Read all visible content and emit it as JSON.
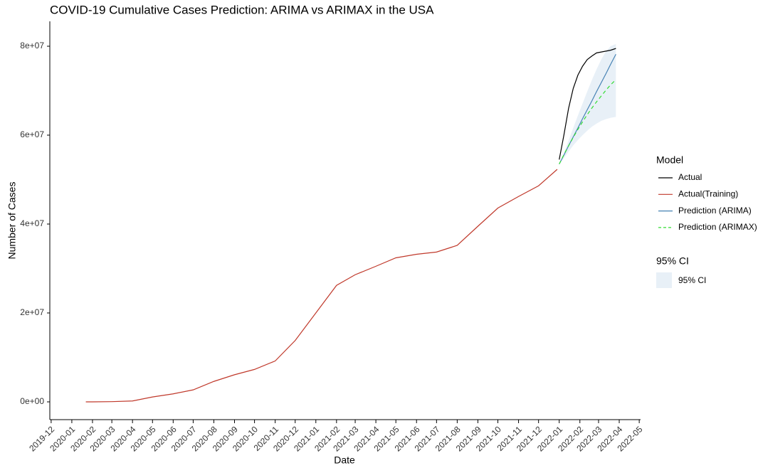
{
  "chart_data": {
    "type": "line",
    "title": "COVID-19 Cumulative Cases Prediction: ARIMA vs ARIMAX in the USA",
    "x_label": "Date",
    "y_label": "Number of Cases",
    "x": [
      "2020-01-22",
      "2020-02-01",
      "2020-03-01",
      "2020-04-01",
      "2020-05-01",
      "2020-06-01",
      "2020-07-01",
      "2020-08-01",
      "2020-09-01",
      "2020-10-01",
      "2020-11-01",
      "2020-12-01",
      "2021-01-01",
      "2021-02-01",
      "2021-03-01",
      "2021-04-01",
      "2021-05-01",
      "2021-06-01",
      "2021-07-01",
      "2021-08-01",
      "2021-09-01",
      "2021-10-01",
      "2021-11-01",
      "2021-12-01",
      "2021-12-29",
      "2022-01-01",
      "2022-01-08",
      "2022-01-15",
      "2022-01-22",
      "2022-01-29",
      "2022-02-05",
      "2022-02-12",
      "2022-02-19",
      "2022-02-26",
      "2022-03-05",
      "2022-03-12",
      "2022-03-19",
      "2022-03-27"
    ],
    "series": [
      {
        "name": "Actual",
        "color": "#000000",
        "dash": false,
        "values": [
          null,
          null,
          null,
          null,
          null,
          null,
          null,
          null,
          null,
          null,
          null,
          null,
          null,
          null,
          null,
          null,
          null,
          null,
          null,
          null,
          null,
          null,
          null,
          null,
          null,
          54500000,
          60000000,
          66000000,
          70500000,
          73500000,
          75500000,
          77000000,
          77800000,
          78500000,
          78700000,
          78900000,
          79100000,
          79500000
        ]
      },
      {
        "name": "Actual(Training)",
        "color": "#c0392b",
        "dash": false,
        "values": [
          0,
          0,
          50000,
          200000,
          1100000,
          1800000,
          2700000,
          4600000,
          6100000,
          7300000,
          9200000,
          13800000,
          20000000,
          26200000,
          28600000,
          30500000,
          32400000,
          33200000,
          33700000,
          35200000,
          39500000,
          43600000,
          46200000,
          48600000,
          52300000,
          null,
          null,
          null,
          null,
          null,
          null,
          null,
          null,
          null,
          null,
          null,
          null,
          null
        ]
      },
      {
        "name": "Prediction (ARIMA)",
        "color": "#4682b4",
        "dash": false,
        "values": [
          null,
          null,
          null,
          null,
          null,
          null,
          null,
          null,
          null,
          null,
          null,
          null,
          null,
          null,
          null,
          null,
          null,
          null,
          null,
          null,
          null,
          null,
          null,
          null,
          null,
          53500000,
          55500000,
          57600000,
          59600000,
          61600000,
          63700000,
          65700000,
          67700000,
          69800000,
          71800000,
          73800000,
          75900000,
          78200000
        ]
      },
      {
        "name": "Prediction (ARIMAX)",
        "color": "#33dd33",
        "dash": true,
        "values": [
          null,
          null,
          null,
          null,
          null,
          null,
          null,
          null,
          null,
          null,
          null,
          null,
          null,
          null,
          null,
          null,
          null,
          null,
          null,
          null,
          null,
          null,
          null,
          null,
          null,
          53500000,
          55600000,
          57600000,
          59500000,
          61300000,
          63000000,
          64600000,
          66100000,
          67500000,
          68800000,
          70100000,
          71300000,
          72500000
        ]
      }
    ],
    "ci": {
      "title": "95% CI",
      "name": "95% CI",
      "color": "#e8f0f7",
      "lower": [
        null,
        null,
        null,
        null,
        null,
        null,
        null,
        null,
        null,
        null,
        null,
        null,
        null,
        null,
        null,
        null,
        null,
        null,
        null,
        null,
        null,
        null,
        null,
        null,
        null,
        53500000,
        54800000,
        56300000,
        57700000,
        58900000,
        60000000,
        61000000,
        61900000,
        62600000,
        63200000,
        63600000,
        63900000,
        64100000
      ],
      "upper": [
        null,
        null,
        null,
        null,
        null,
        null,
        null,
        null,
        null,
        null,
        null,
        null,
        null,
        null,
        null,
        null,
        null,
        null,
        null,
        null,
        null,
        null,
        null,
        null,
        null,
        53500000,
        56000000,
        58800000,
        61600000,
        64400000,
        67100000,
        69800000,
        72400000,
        74800000,
        77000000,
        78800000,
        80000000,
        80500000
      ]
    },
    "legend_title": "Model",
    "xlim": [
      "2019-11-29",
      "2022-05-03"
    ],
    "xticks": [
      "2019-12",
      "2020-01",
      "2020-02",
      "2020-03",
      "2020-04",
      "2020-05",
      "2020-06",
      "2020-07",
      "2020-08",
      "2020-09",
      "2020-10",
      "2020-11",
      "2020-12",
      "2021-01",
      "2021-02",
      "2021-03",
      "2021-04",
      "2021-05",
      "2021-06",
      "2021-07",
      "2021-08",
      "2021-09",
      "2021-10",
      "2021-11",
      "2021-12",
      "2022-01",
      "2022-02",
      "2022-03",
      "2022-04",
      "2022-05"
    ],
    "ylim": [
      -4000000,
      85600000
    ],
    "yticks": [
      {
        "value": 0,
        "label": "0e+00"
      },
      {
        "value": 20000000,
        "label": "2e+07"
      },
      {
        "value": 40000000,
        "label": "4e+07"
      },
      {
        "value": 60000000,
        "label": "6e+07"
      },
      {
        "value": 80000000,
        "label": "8e+07"
      }
    ],
    "grid": false
  }
}
